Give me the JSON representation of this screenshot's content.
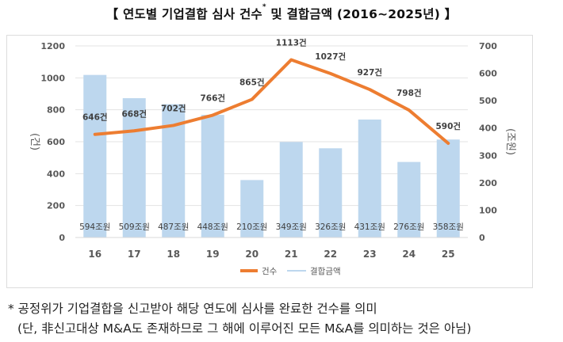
{
  "title": {
    "prefix": "【 연도별 기업결합 심사 건수",
    "asterisk": "*",
    "suffix": " 및 결합금액 (2016~2025년) 】"
  },
  "chart_data": {
    "type": "bar+line",
    "title": "연도별 기업결합 심사 건수* 및 결합금액 (2016~2025년)",
    "categories": [
      "16",
      "17",
      "18",
      "19",
      "20",
      "21",
      "22",
      "23",
      "24",
      "25"
    ],
    "series": [
      {
        "name": "건수",
        "type": "line",
        "axis": "left",
        "color": "#ED7D31",
        "values": [
          646,
          668,
          702,
          766,
          865,
          1113,
          1027,
          927,
          798,
          590
        ],
        "labels": [
          "646건",
          "668건",
          "702건",
          "766건",
          "865건",
          "1113건",
          "1027건",
          "927건",
          "798건",
          "590건"
        ]
      },
      {
        "name": "결합금액",
        "type": "bar",
        "axis": "right",
        "color": "#BDD7EE",
        "values": [
          594,
          509,
          487,
          448,
          210,
          349,
          326,
          431,
          276,
          358
        ],
        "labels": [
          "594조원",
          "509조원",
          "487조원",
          "448조원",
          "210조원",
          "349조원",
          "326조원",
          "431조원",
          "276조원",
          "358조원"
        ]
      }
    ],
    "y_left": {
      "label": "(건)",
      "min": 0,
      "max": 1200,
      "ticks": [
        "0",
        "200",
        "400",
        "600",
        "800",
        "1000",
        "1200"
      ]
    },
    "y_right": {
      "label": "(조원)",
      "min": 0,
      "max": 700,
      "ticks": [
        "0",
        "100",
        "200",
        "300",
        "400",
        "500",
        "600",
        "700"
      ]
    },
    "grid": true,
    "legend": "bottom"
  },
  "notes": {
    "line1": "* 공정위가 기업결합을 신고받아 해당 연도에 심사를 완료한 건수를 의미",
    "line2": "(단, 非신고대상 M&A도 존재하므로 그 해에 이루어진 모든 M&A를 의미하는 것은 아님)"
  }
}
